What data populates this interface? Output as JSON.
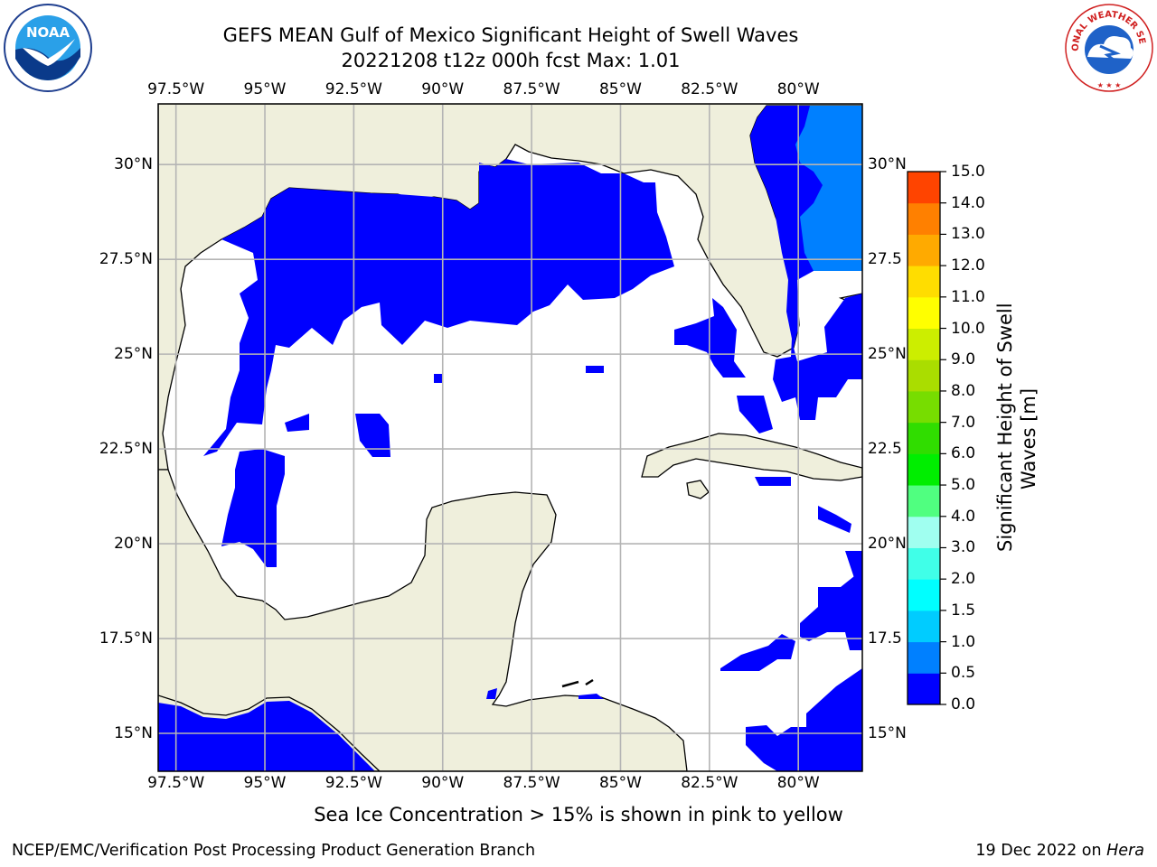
{
  "title": {
    "line1": "GEFS MEAN Gulf of Mexico Significant Height of Swell Waves",
    "line2": "20221208 t12z 000h fcst   Max: 1.01"
  },
  "map": {
    "lon_labels": [
      "97.5°W",
      "95°W",
      "92.5°W",
      "90°W",
      "87.5°W",
      "85°W",
      "82.5°W",
      "80°W"
    ],
    "lon_values": [
      -97.5,
      -95,
      -92.5,
      -90,
      -87.5,
      -85,
      -82.5,
      -80
    ],
    "lat_labels": [
      "30°N",
      "27.5°N",
      "25°N",
      "22.5°N",
      "20°N",
      "17.5°N",
      "15°N"
    ],
    "lat_values": [
      30,
      27.5,
      25,
      22.5,
      20,
      17.5,
      15
    ],
    "right_lat_labels": [
      "30°N",
      "27.5",
      "25°N",
      "22.5",
      "20°N",
      "17.5",
      "15°N"
    ],
    "extent": {
      "lon_min": -98,
      "lon_max": -78.2,
      "lat_min": 14.0,
      "lat_max": 31.6
    },
    "grid": true,
    "colors": {
      "land": "#efefdc",
      "ocean": "#ffffff",
      "swell_low": "#0000ff",
      "swell_mid": "#0080ff",
      "grid": "#b4b4b4"
    }
  },
  "colorbar": {
    "label": "Significant Height of Swell Waves [m]",
    "label_line1": "Significant Height of Swell",
    "label_line2": "Waves [m]",
    "ticks": [
      "0.0",
      "0.5",
      "1.0",
      "1.5",
      "2.0",
      "3.0",
      "4.0",
      "5.0",
      "6.0",
      "7.0",
      "8.0",
      "9.0",
      "10.0",
      "11.0",
      "12.0",
      "13.0",
      "14.0",
      "15.0"
    ],
    "colors": [
      "#0000ff",
      "#0080ff",
      "#00ccff",
      "#00ffff",
      "#40ffe8",
      "#a0fff0",
      "#50ff80",
      "#00ee00",
      "#30dd00",
      "#77dd00",
      "#aadd00",
      "#ccee00",
      "#ffff00",
      "#ffdd00",
      "#ffaa00",
      "#ff8000",
      "#ff4400",
      "#ff0000"
    ]
  },
  "note": "Sea Ice Concentration > 15% is shown in pink to yellow",
  "footer": {
    "left": "NCEP/EMC/Verification Post Processing Product Generation Branch",
    "right_date": "19 Dec 2022 on ",
    "right_host": "Hera"
  },
  "logos": {
    "left": "NOAA",
    "right": "NATIONAL WEATHER SERVICE"
  }
}
